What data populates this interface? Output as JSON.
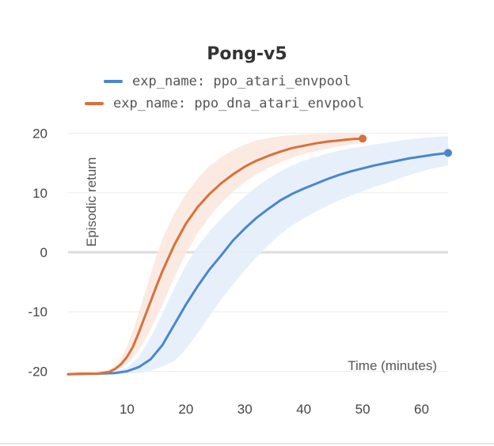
{
  "chart_data": {
    "type": "line",
    "title": "Pong-v5",
    "xlabel": "Time (minutes)",
    "ylabel": "Episodic return",
    "xlim": [
      0,
      64.5
    ],
    "ylim": [
      -21,
      21
    ],
    "x_ticks": [
      10,
      20,
      30,
      40,
      50,
      60
    ],
    "y_ticks": [
      20,
      10,
      0,
      -10,
      -20
    ],
    "grid": true,
    "legend_position": "top",
    "series": [
      {
        "name": "exp_name: ppo_atari_envpool",
        "color": "#4a86cf",
        "band_color": "#e4eefa",
        "x": [
          0,
          5,
          8,
          10,
          12,
          14,
          16,
          18,
          20,
          22,
          24,
          26,
          28,
          30,
          32,
          34,
          36,
          38,
          40,
          42,
          44,
          46,
          48,
          50,
          52,
          54,
          56,
          58,
          60,
          62,
          64.5
        ],
        "y": [
          -20.5,
          -20.4,
          -20.3,
          -20.0,
          -19.3,
          -18.0,
          -15.6,
          -12.2,
          -8.8,
          -5.7,
          -2.9,
          -0.5,
          2.0,
          4.0,
          5.8,
          7.3,
          8.7,
          9.8,
          10.7,
          11.5,
          12.3,
          13.0,
          13.6,
          14.1,
          14.6,
          15.0,
          15.4,
          15.8,
          16.1,
          16.4,
          16.7
        ],
        "y_low": [
          -20.6,
          -20.6,
          -20.5,
          -20.4,
          -20.3,
          -19.9,
          -19.2,
          -18.3,
          -16.3,
          -13.6,
          -10.7,
          -7.9,
          -5.4,
          -3.0,
          -0.8,
          1.2,
          3.0,
          4.5,
          5.7,
          6.8,
          7.8,
          8.7,
          9.5,
          10.3,
          11.0,
          11.6,
          12.3,
          13.0,
          13.6,
          14.1,
          14.6
        ],
        "y_high": [
          -20.4,
          -20.2,
          -19.9,
          -19.4,
          -17.6,
          -14.3,
          -10.3,
          -6.1,
          -2.2,
          1.0,
          3.5,
          5.7,
          7.6,
          9.4,
          11.0,
          12.4,
          13.6,
          14.6,
          15.4,
          16.0,
          16.6,
          17.1,
          17.5,
          17.8,
          18.1,
          18.4,
          18.7,
          19.0,
          19.2,
          19.4,
          19.5
        ]
      },
      {
        "name": "exp_name: ppo_dna_atari_envpool",
        "color": "#d9703c",
        "band_color": "#fbe8de",
        "x": [
          0,
          2,
          5,
          7,
          8,
          9,
          10,
          11,
          12,
          13,
          14,
          15,
          16,
          18,
          20,
          22,
          24,
          26,
          28,
          30,
          32,
          34,
          36,
          38,
          40,
          42,
          44,
          46,
          48,
          50
        ],
        "y": [
          -20.5,
          -20.4,
          -20.4,
          -20.1,
          -19.6,
          -18.8,
          -17.6,
          -15.9,
          -13.5,
          -10.9,
          -8.3,
          -5.7,
          -3.2,
          1.2,
          4.8,
          7.6,
          9.8,
          11.6,
          13.1,
          14.4,
          15.4,
          16.2,
          16.9,
          17.5,
          17.9,
          18.3,
          18.6,
          18.8,
          19.0,
          19.1
        ],
        "y_low": [
          -20.6,
          -20.5,
          -20.5,
          -20.3,
          -20.0,
          -19.4,
          -18.8,
          -17.8,
          -16.4,
          -14.8,
          -13.0,
          -11.0,
          -8.8,
          -4.3,
          -0.2,
          3.2,
          6.0,
          8.3,
          10.2,
          11.8,
          13.1,
          14.2,
          15.1,
          15.9,
          16.5,
          17.0,
          17.4,
          17.8,
          18.1,
          18.4
        ],
        "y_high": [
          -20.4,
          -20.3,
          -20.2,
          -19.8,
          -19.0,
          -17.8,
          -15.8,
          -13.2,
          -10.2,
          -6.9,
          -3.7,
          -0.6,
          2.2,
          6.5,
          9.8,
          12.4,
          14.5,
          16.0,
          17.2,
          18.1,
          18.8,
          19.2,
          19.5,
          19.7,
          19.8,
          19.9,
          19.9,
          20.0,
          20.0,
          20.0
        ]
      }
    ]
  }
}
